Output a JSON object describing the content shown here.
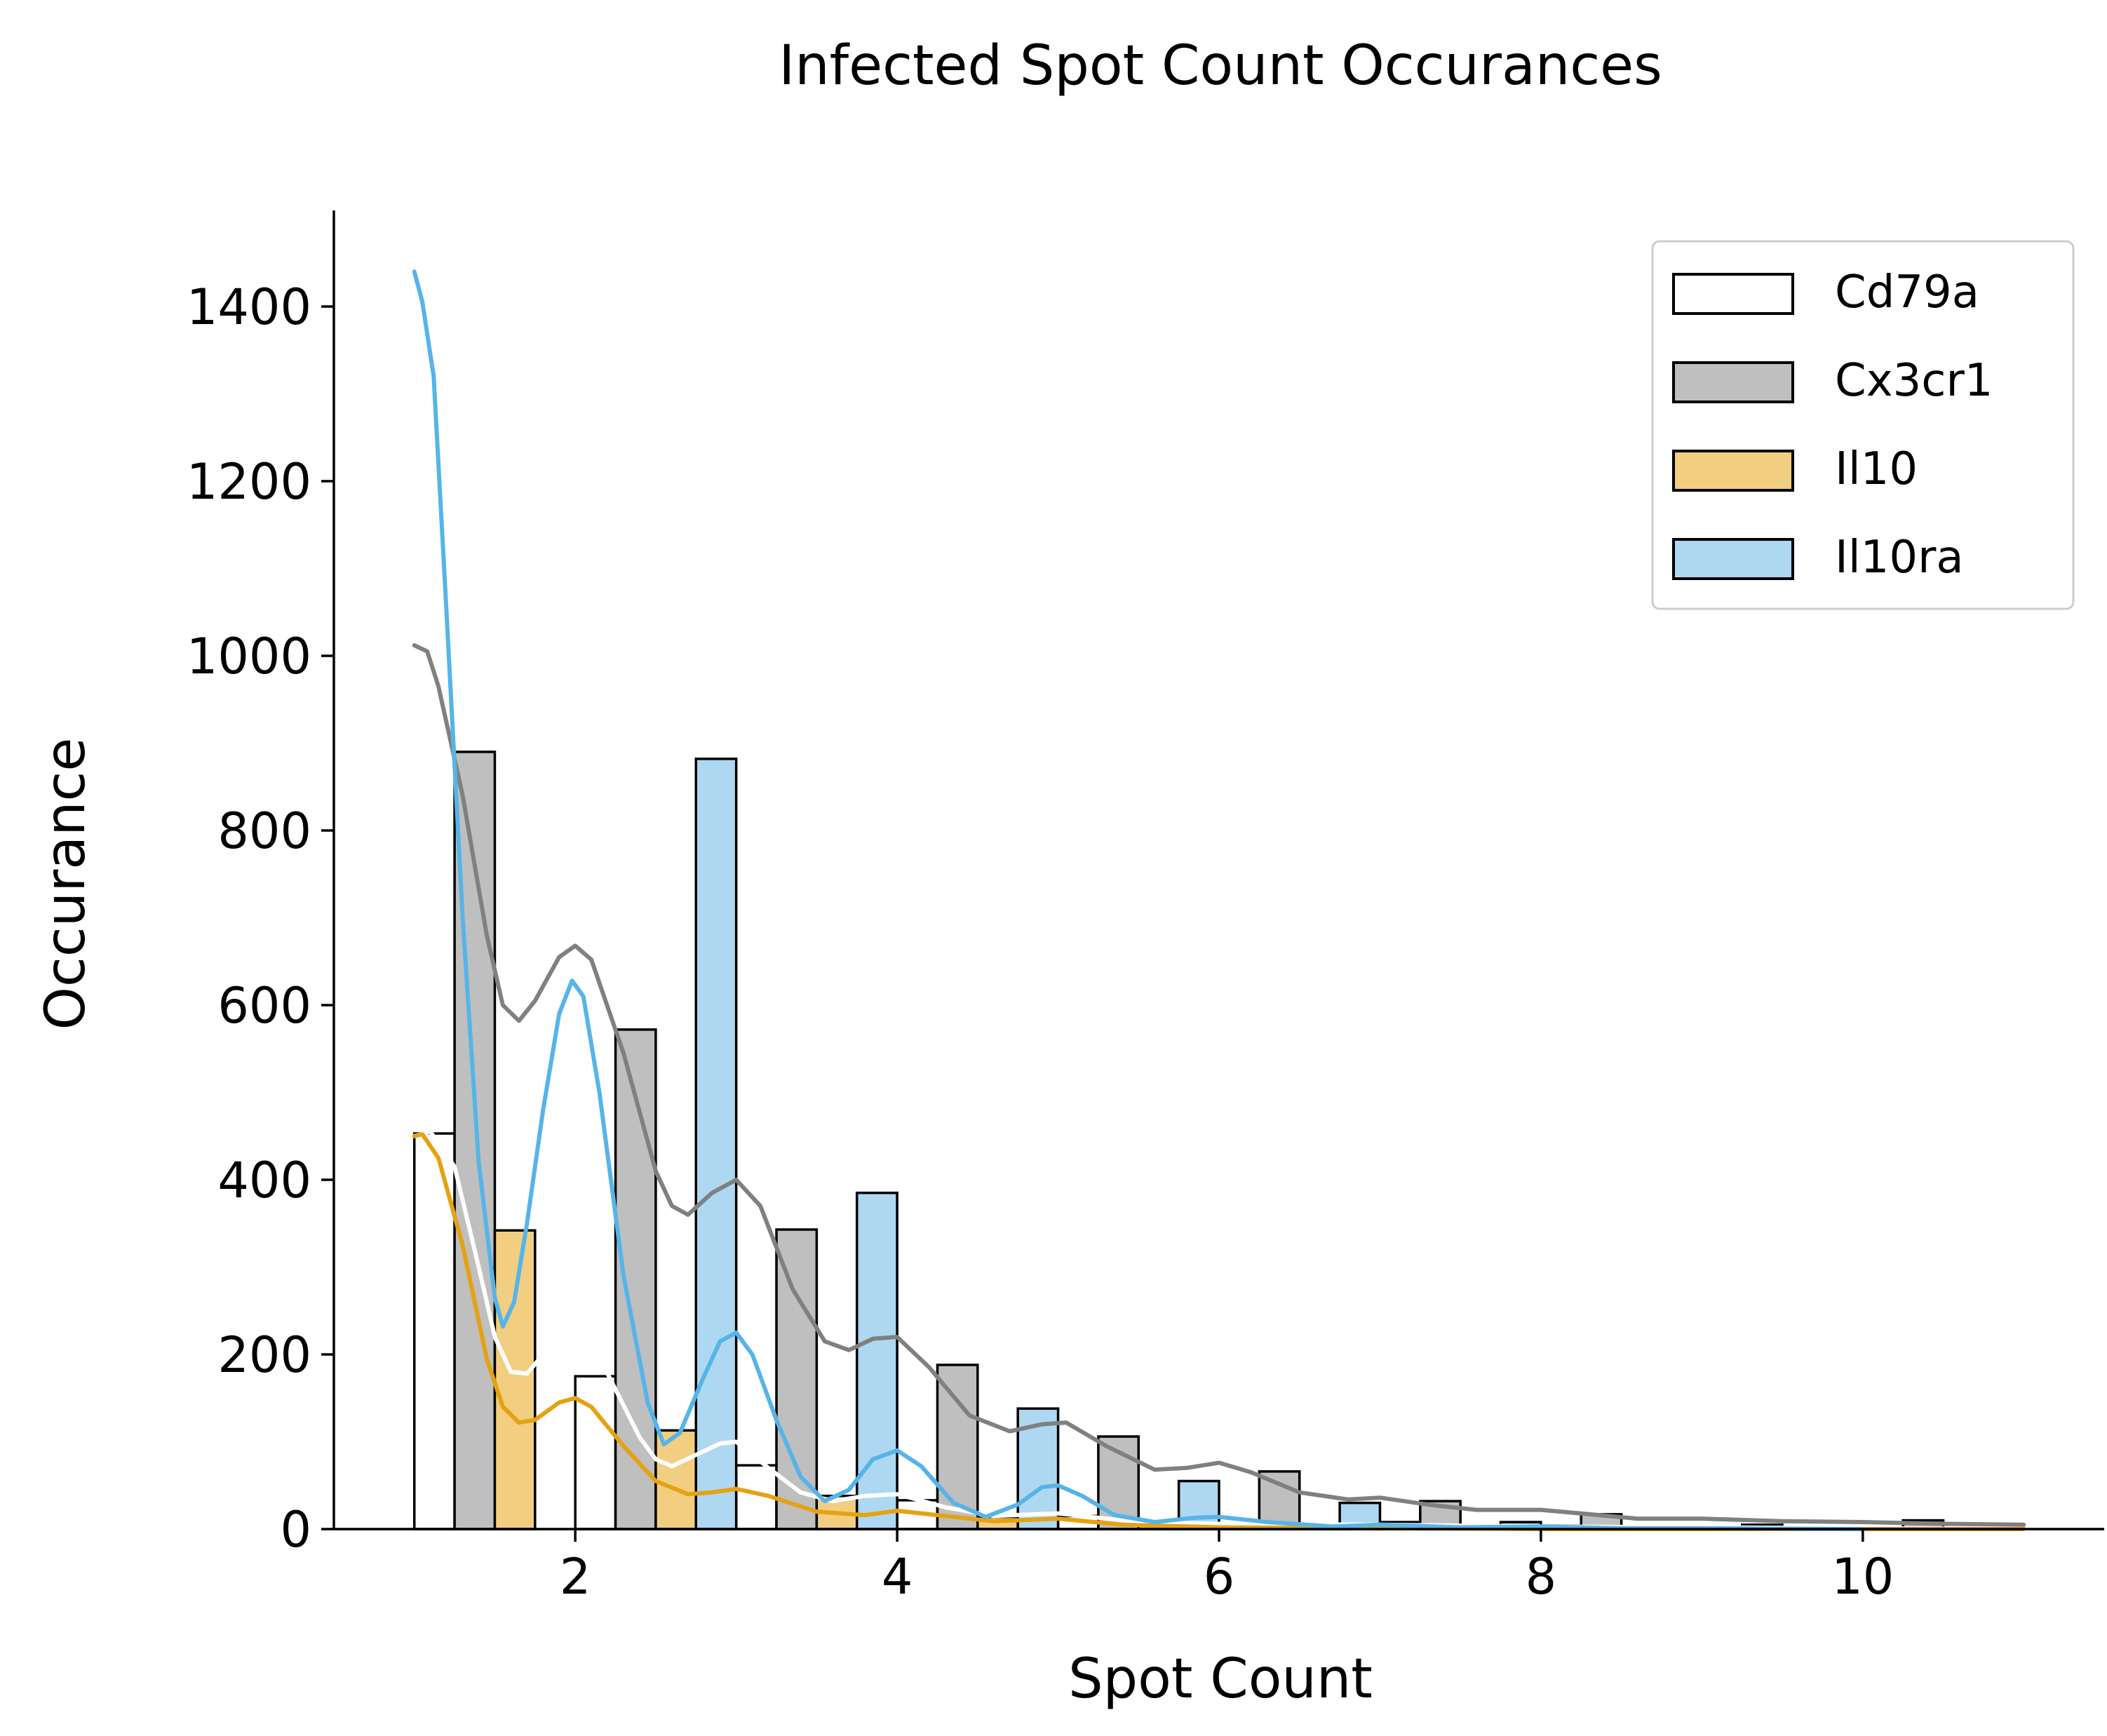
{
  "chart_data": {
    "type": "bar",
    "title": "Infected Spot Count Occurances",
    "xlabel": "Spot Count",
    "ylabel": "Occurance",
    "xlim": [
      0.5,
      11.5
    ],
    "ylim": [
      0,
      1510
    ],
    "x_ticks": [
      2,
      4,
      6,
      8,
      10
    ],
    "y_ticks": [
      0,
      200,
      400,
      600,
      800,
      1000,
      1200,
      1400
    ],
    "grid": false,
    "legend_position": "top-right",
    "bin_width": 0.25,
    "series": [
      {
        "name": "Cd79a",
        "fill": "#ffffff",
        "line": "#ffffff",
        "bins": [
          [
            1.0,
            453
          ],
          [
            2.0,
            175
          ],
          [
            3.0,
            73
          ],
          [
            4.0,
            33
          ],
          [
            5.0,
            15
          ],
          [
            6.0,
            5
          ],
          [
            7.0,
            8
          ],
          [
            8.0,
            4
          ],
          [
            9.0,
            2
          ],
          [
            10.0,
            1
          ]
        ],
        "kde": [
          [
            1.0,
            450
          ],
          [
            1.1,
            455
          ],
          [
            1.25,
            415
          ],
          [
            1.4,
            300
          ],
          [
            1.5,
            220
          ],
          [
            1.6,
            180
          ],
          [
            1.7,
            178
          ],
          [
            1.8,
            200
          ],
          [
            1.9,
            225
          ],
          [
            2.0,
            235
          ],
          [
            2.1,
            215
          ],
          [
            2.25,
            160
          ],
          [
            2.4,
            105
          ],
          [
            2.5,
            80
          ],
          [
            2.6,
            72
          ],
          [
            2.75,
            85
          ],
          [
            2.9,
            98
          ],
          [
            3.0,
            100
          ],
          [
            3.2,
            70
          ],
          [
            3.4,
            42
          ],
          [
            3.6,
            32
          ],
          [
            3.8,
            38
          ],
          [
            4.0,
            40
          ],
          [
            4.3,
            25
          ],
          [
            4.6,
            15
          ],
          [
            5.0,
            18
          ],
          [
            5.5,
            8
          ],
          [
            6.0,
            6
          ],
          [
            7.0,
            5
          ],
          [
            8.0,
            3
          ],
          [
            9.0,
            2
          ],
          [
            10.0,
            1
          ],
          [
            11.0,
            0
          ]
        ]
      },
      {
        "name": "Cx3cr1",
        "fill": "#bfbfbf",
        "line": "#808080",
        "bins": [
          [
            1.0,
            890
          ],
          [
            2.0,
            572
          ],
          [
            3.0,
            343
          ],
          [
            4.0,
            188
          ],
          [
            5.0,
            106
          ],
          [
            6.0,
            66
          ],
          [
            7.0,
            32
          ],
          [
            8.0,
            17
          ],
          [
            9.0,
            5
          ],
          [
            10.0,
            10
          ]
        ],
        "kde": [
          [
            1.0,
            1012
          ],
          [
            1.08,
            1005
          ],
          [
            1.15,
            965
          ],
          [
            1.3,
            840
          ],
          [
            1.45,
            680
          ],
          [
            1.55,
            600
          ],
          [
            1.65,
            582
          ],
          [
            1.75,
            605
          ],
          [
            1.9,
            655
          ],
          [
            2.0,
            668
          ],
          [
            2.1,
            652
          ],
          [
            2.3,
            545
          ],
          [
            2.5,
            410
          ],
          [
            2.6,
            370
          ],
          [
            2.7,
            360
          ],
          [
            2.85,
            385
          ],
          [
            3.0,
            400
          ],
          [
            3.15,
            370
          ],
          [
            3.35,
            275
          ],
          [
            3.55,
            215
          ],
          [
            3.7,
            205
          ],
          [
            3.85,
            218
          ],
          [
            4.0,
            220
          ],
          [
            4.2,
            185
          ],
          [
            4.45,
            130
          ],
          [
            4.7,
            112
          ],
          [
            4.9,
            120
          ],
          [
            5.05,
            122
          ],
          [
            5.3,
            95
          ],
          [
            5.6,
            68
          ],
          [
            5.8,
            70
          ],
          [
            6.0,
            76
          ],
          [
            6.2,
            65
          ],
          [
            6.5,
            42
          ],
          [
            6.8,
            34
          ],
          [
            7.0,
            36
          ],
          [
            7.3,
            28
          ],
          [
            7.6,
            22
          ],
          [
            8.0,
            22
          ],
          [
            8.3,
            17
          ],
          [
            8.6,
            12
          ],
          [
            9.0,
            12
          ],
          [
            9.5,
            9
          ],
          [
            10.0,
            8
          ],
          [
            10.5,
            6
          ],
          [
            11.0,
            5
          ]
        ]
      },
      {
        "name": "Il10",
        "fill": "#f2ce80",
        "line": "#e5a211",
        "bins": [
          [
            1.0,
            342
          ],
          [
            2.0,
            113
          ],
          [
            3.0,
            38
          ],
          [
            4.0,
            14
          ],
          [
            5.0,
            5
          ],
          [
            6.0,
            2
          ],
          [
            7.0,
            1
          ],
          [
            8.0,
            1
          ],
          [
            9.0,
            0
          ],
          [
            10.0,
            0
          ]
        ],
        "kde": [
          [
            1.0,
            450
          ],
          [
            1.05,
            452
          ],
          [
            1.15,
            425
          ],
          [
            1.3,
            325
          ],
          [
            1.45,
            195
          ],
          [
            1.55,
            140
          ],
          [
            1.65,
            122
          ],
          [
            1.75,
            125
          ],
          [
            1.9,
            145
          ],
          [
            2.0,
            150
          ],
          [
            2.1,
            140
          ],
          [
            2.3,
            95
          ],
          [
            2.5,
            55
          ],
          [
            2.7,
            40
          ],
          [
            2.85,
            42
          ],
          [
            3.0,
            46
          ],
          [
            3.2,
            38
          ],
          [
            3.5,
            20
          ],
          [
            3.8,
            16
          ],
          [
            4.0,
            21
          ],
          [
            4.3,
            15
          ],
          [
            4.6,
            9
          ],
          [
            5.0,
            12
          ],
          [
            5.4,
            5
          ],
          [
            6.0,
            2
          ],
          [
            7.0,
            1
          ],
          [
            8.0,
            0
          ],
          [
            11.0,
            0
          ]
        ]
      },
      {
        "name": "Il10ra",
        "fill": "#aed8f2",
        "line": "#56b4e9",
        "bins": [
          [
            1.0,
            0
          ],
          [
            2.0,
            882
          ],
          [
            3.0,
            385
          ],
          [
            4.0,
            138
          ],
          [
            5.0,
            55
          ],
          [
            6.0,
            30
          ],
          [
            7.0,
            8
          ],
          [
            8.0,
            3
          ],
          [
            9.0,
            1
          ],
          [
            10.0,
            1
          ]
        ],
        "kde": [
          [
            1.0,
            1440
          ],
          [
            1.05,
            1405
          ],
          [
            1.12,
            1320
          ],
          [
            1.2,
            1050
          ],
          [
            1.3,
            700
          ],
          [
            1.4,
            420
          ],
          [
            1.5,
            265
          ],
          [
            1.55,
            232
          ],
          [
            1.62,
            260
          ],
          [
            1.7,
            350
          ],
          [
            1.8,
            480
          ],
          [
            1.9,
            590
          ],
          [
            1.98,
            628
          ],
          [
            2.05,
            610
          ],
          [
            2.15,
            500
          ],
          [
            2.3,
            290
          ],
          [
            2.45,
            145
          ],
          [
            2.55,
            97
          ],
          [
            2.65,
            110
          ],
          [
            2.8,
            175
          ],
          [
            2.9,
            215
          ],
          [
            3.0,
            225
          ],
          [
            3.1,
            200
          ],
          [
            3.25,
            125
          ],
          [
            3.4,
            60
          ],
          [
            3.55,
            32
          ],
          [
            3.7,
            45
          ],
          [
            3.85,
            80
          ],
          [
            4.0,
            90
          ],
          [
            4.15,
            72
          ],
          [
            4.35,
            30
          ],
          [
            4.55,
            14
          ],
          [
            4.75,
            28
          ],
          [
            4.9,
            48
          ],
          [
            5.0,
            50
          ],
          [
            5.15,
            38
          ],
          [
            5.35,
            16
          ],
          [
            5.6,
            8
          ],
          [
            5.85,
            13
          ],
          [
            6.0,
            14
          ],
          [
            6.3,
            8
          ],
          [
            6.7,
            3
          ],
          [
            7.0,
            5
          ],
          [
            7.5,
            2
          ],
          [
            8.0,
            3
          ],
          [
            8.5,
            1
          ],
          [
            9.0,
            1
          ],
          [
            10.0,
            0
          ]
        ]
      }
    ]
  }
}
